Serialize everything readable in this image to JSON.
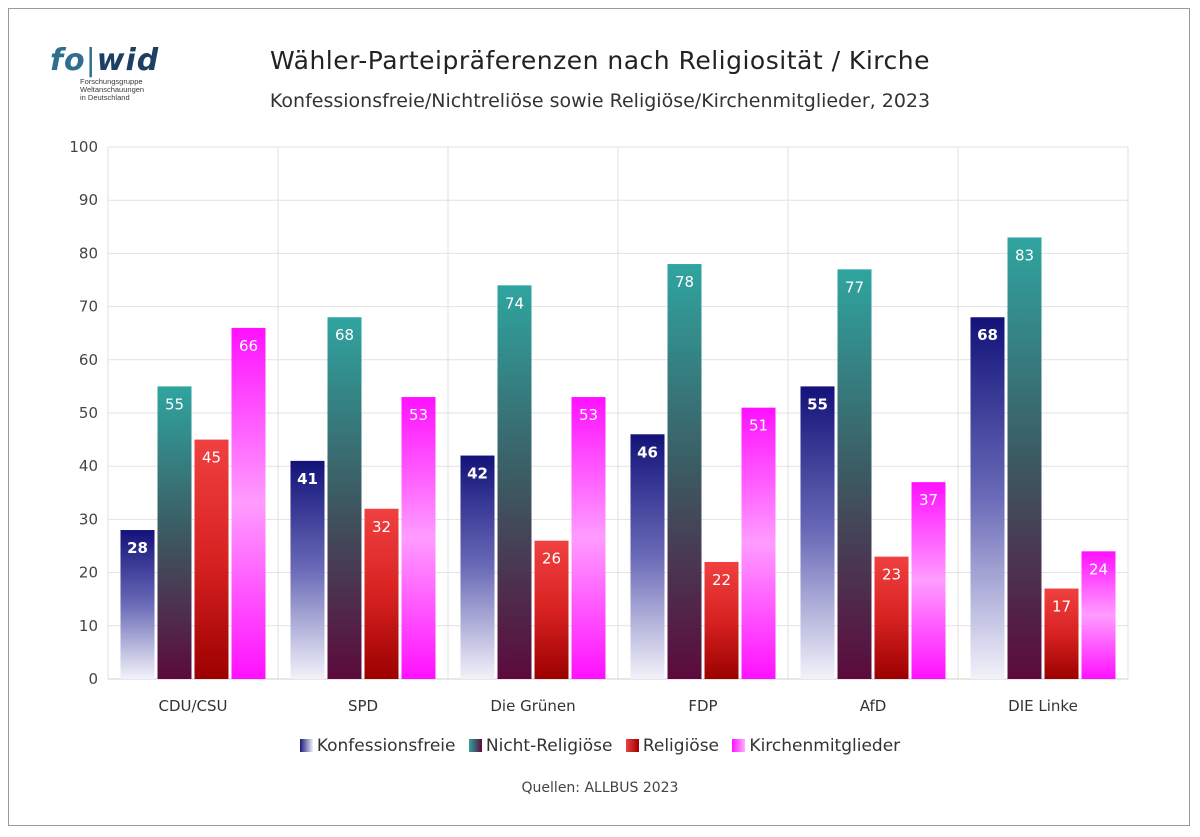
{
  "logo": {
    "fo": "fo",
    "sep": "|",
    "wid": "wid",
    "line1": "Forschungsgruppe",
    "line2": "Weltanschauungen",
    "line3": "in Deutschland"
  },
  "source": "Quellen: ALLBUS  2023",
  "colors": {
    "konfessionsfreie": "#1a1a80",
    "nicht_religioese": "#2e9a9a",
    "religioese": "#e02020",
    "kirchenmitglieder": "#ff20ff"
  },
  "chart_data": {
    "type": "bar",
    "title": "Wähler-Parteipräferenzen nach Religiosität / Kirche",
    "subtitle": "Konfessionsfreie/Nichtreliöse sowie Religiöse/Kirchenmitglieder, 2023",
    "categories": [
      "CDU/CSU",
      "SPD",
      "Die Grünen",
      "FDP",
      "AfD",
      "DIE Linke"
    ],
    "series": [
      {
        "name": "Konfessionsfreie",
        "values": [
          28,
          41,
          42,
          46,
          55,
          68
        ]
      },
      {
        "name": "Nicht-Religiöse",
        "values": [
          55,
          68,
          74,
          78,
          77,
          83
        ]
      },
      {
        "name": "Religiöse",
        "values": [
          45,
          32,
          26,
          22,
          23,
          17
        ]
      },
      {
        "name": "Kirchenmitglieder",
        "values": [
          66,
          53,
          53,
          51,
          37,
          24
        ]
      }
    ],
    "ylim": [
      0,
      100
    ],
    "yticks": [
      0,
      10,
      20,
      30,
      40,
      50,
      60,
      70,
      80,
      90,
      100
    ],
    "grid": true,
    "legend": "bottom"
  }
}
